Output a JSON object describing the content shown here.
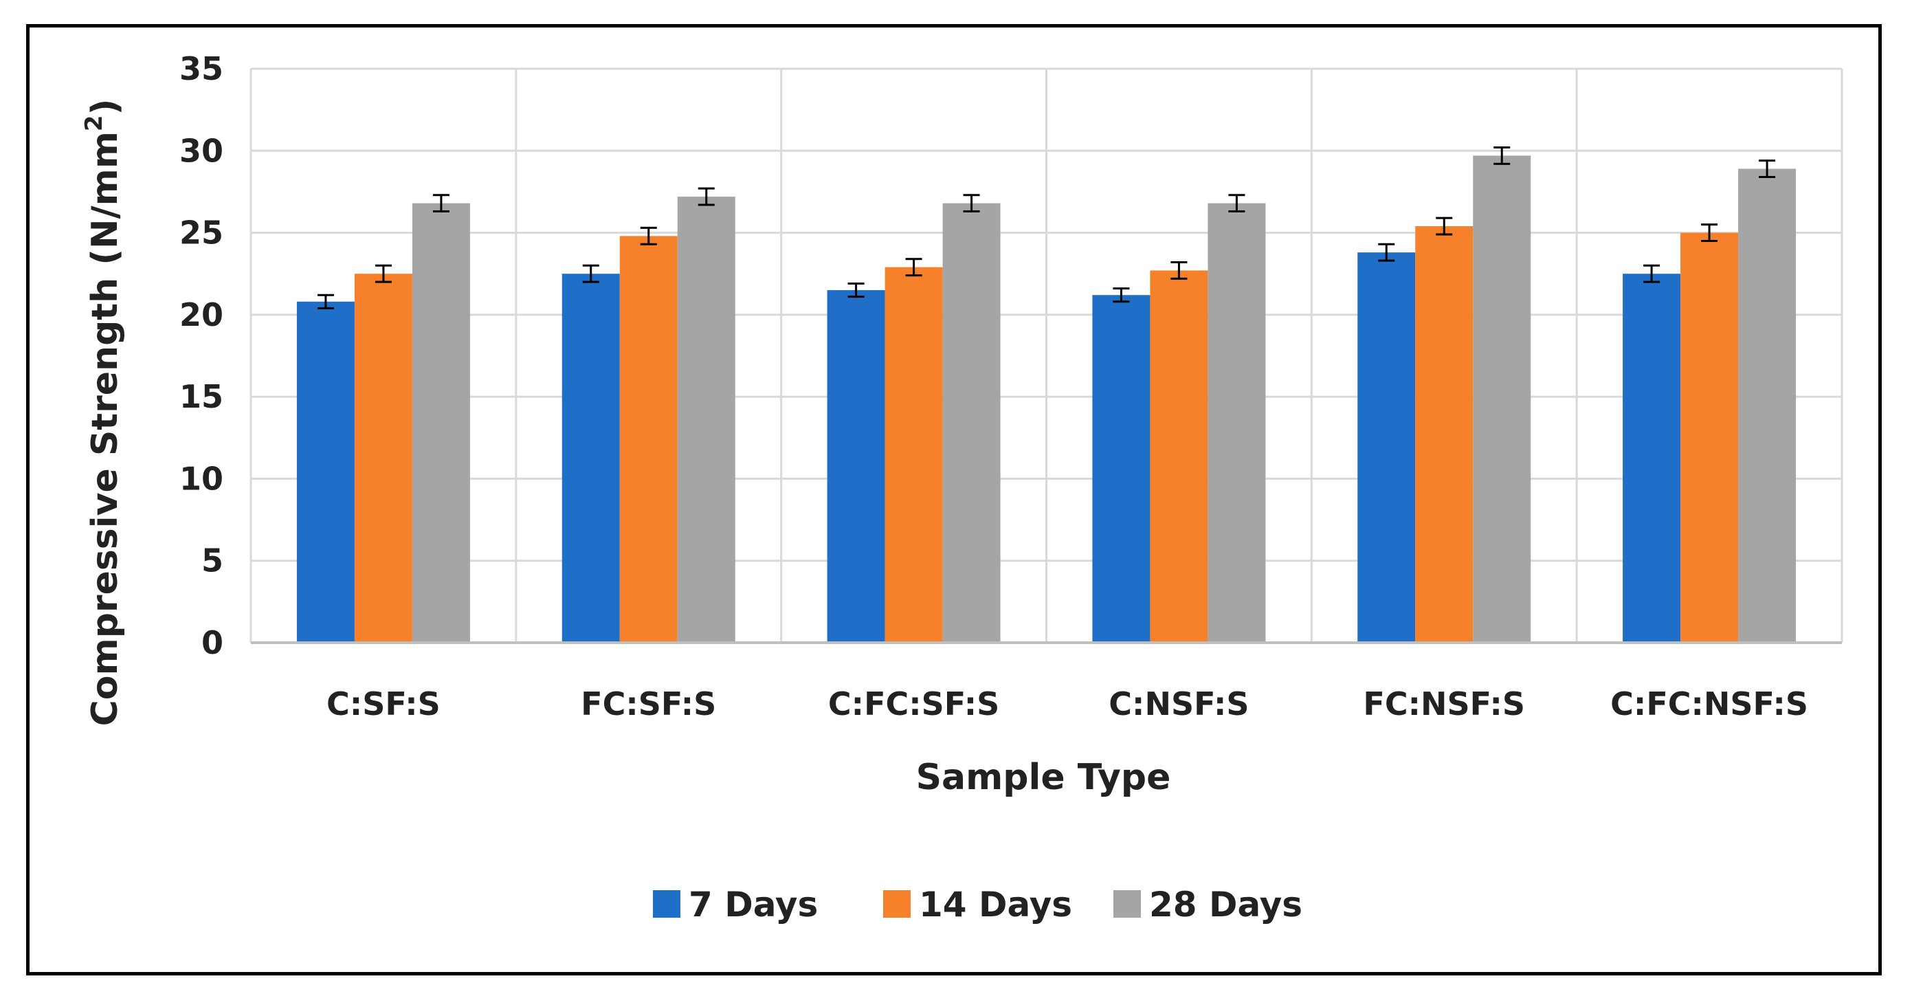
{
  "chart_data": {
    "type": "bar",
    "title": "",
    "xlabel": "Sample Type",
    "ylabel": "Compressive Strength (N/mm²)",
    "ylabel_base": "Compressive Strength (N/mm",
    "ylabel_sup": "2",
    "ylabel_close": ")",
    "ylim": [
      0,
      35
    ],
    "yticks": [
      0,
      5,
      10,
      15,
      20,
      25,
      30,
      35
    ],
    "grid": true,
    "legend_position": "bottom",
    "categories": [
      "C:SF:S",
      "FC:SF:S",
      "C:FC:SF:S",
      "C:NSF:S",
      "FC:NSF:S",
      "C:FC:NSF:S"
    ],
    "series": [
      {
        "name": "7 Days",
        "color": "#1f6fc9",
        "values": [
          20.8,
          22.5,
          21.5,
          21.2,
          23.8,
          22.5
        ],
        "error": [
          0.4,
          0.5,
          0.4,
          0.4,
          0.5,
          0.5
        ]
      },
      {
        "name": "14 Days",
        "color": "#f7812a",
        "values": [
          22.5,
          24.8,
          22.9,
          22.7,
          25.4,
          25.0
        ],
        "error": [
          0.5,
          0.5,
          0.5,
          0.5,
          0.5,
          0.5
        ]
      },
      {
        "name": "28 Days",
        "color": "#a5a5a5",
        "values": [
          26.8,
          27.2,
          26.8,
          26.8,
          29.7,
          28.9
        ],
        "error": [
          0.5,
          0.5,
          0.5,
          0.5,
          0.5,
          0.5
        ]
      }
    ]
  }
}
